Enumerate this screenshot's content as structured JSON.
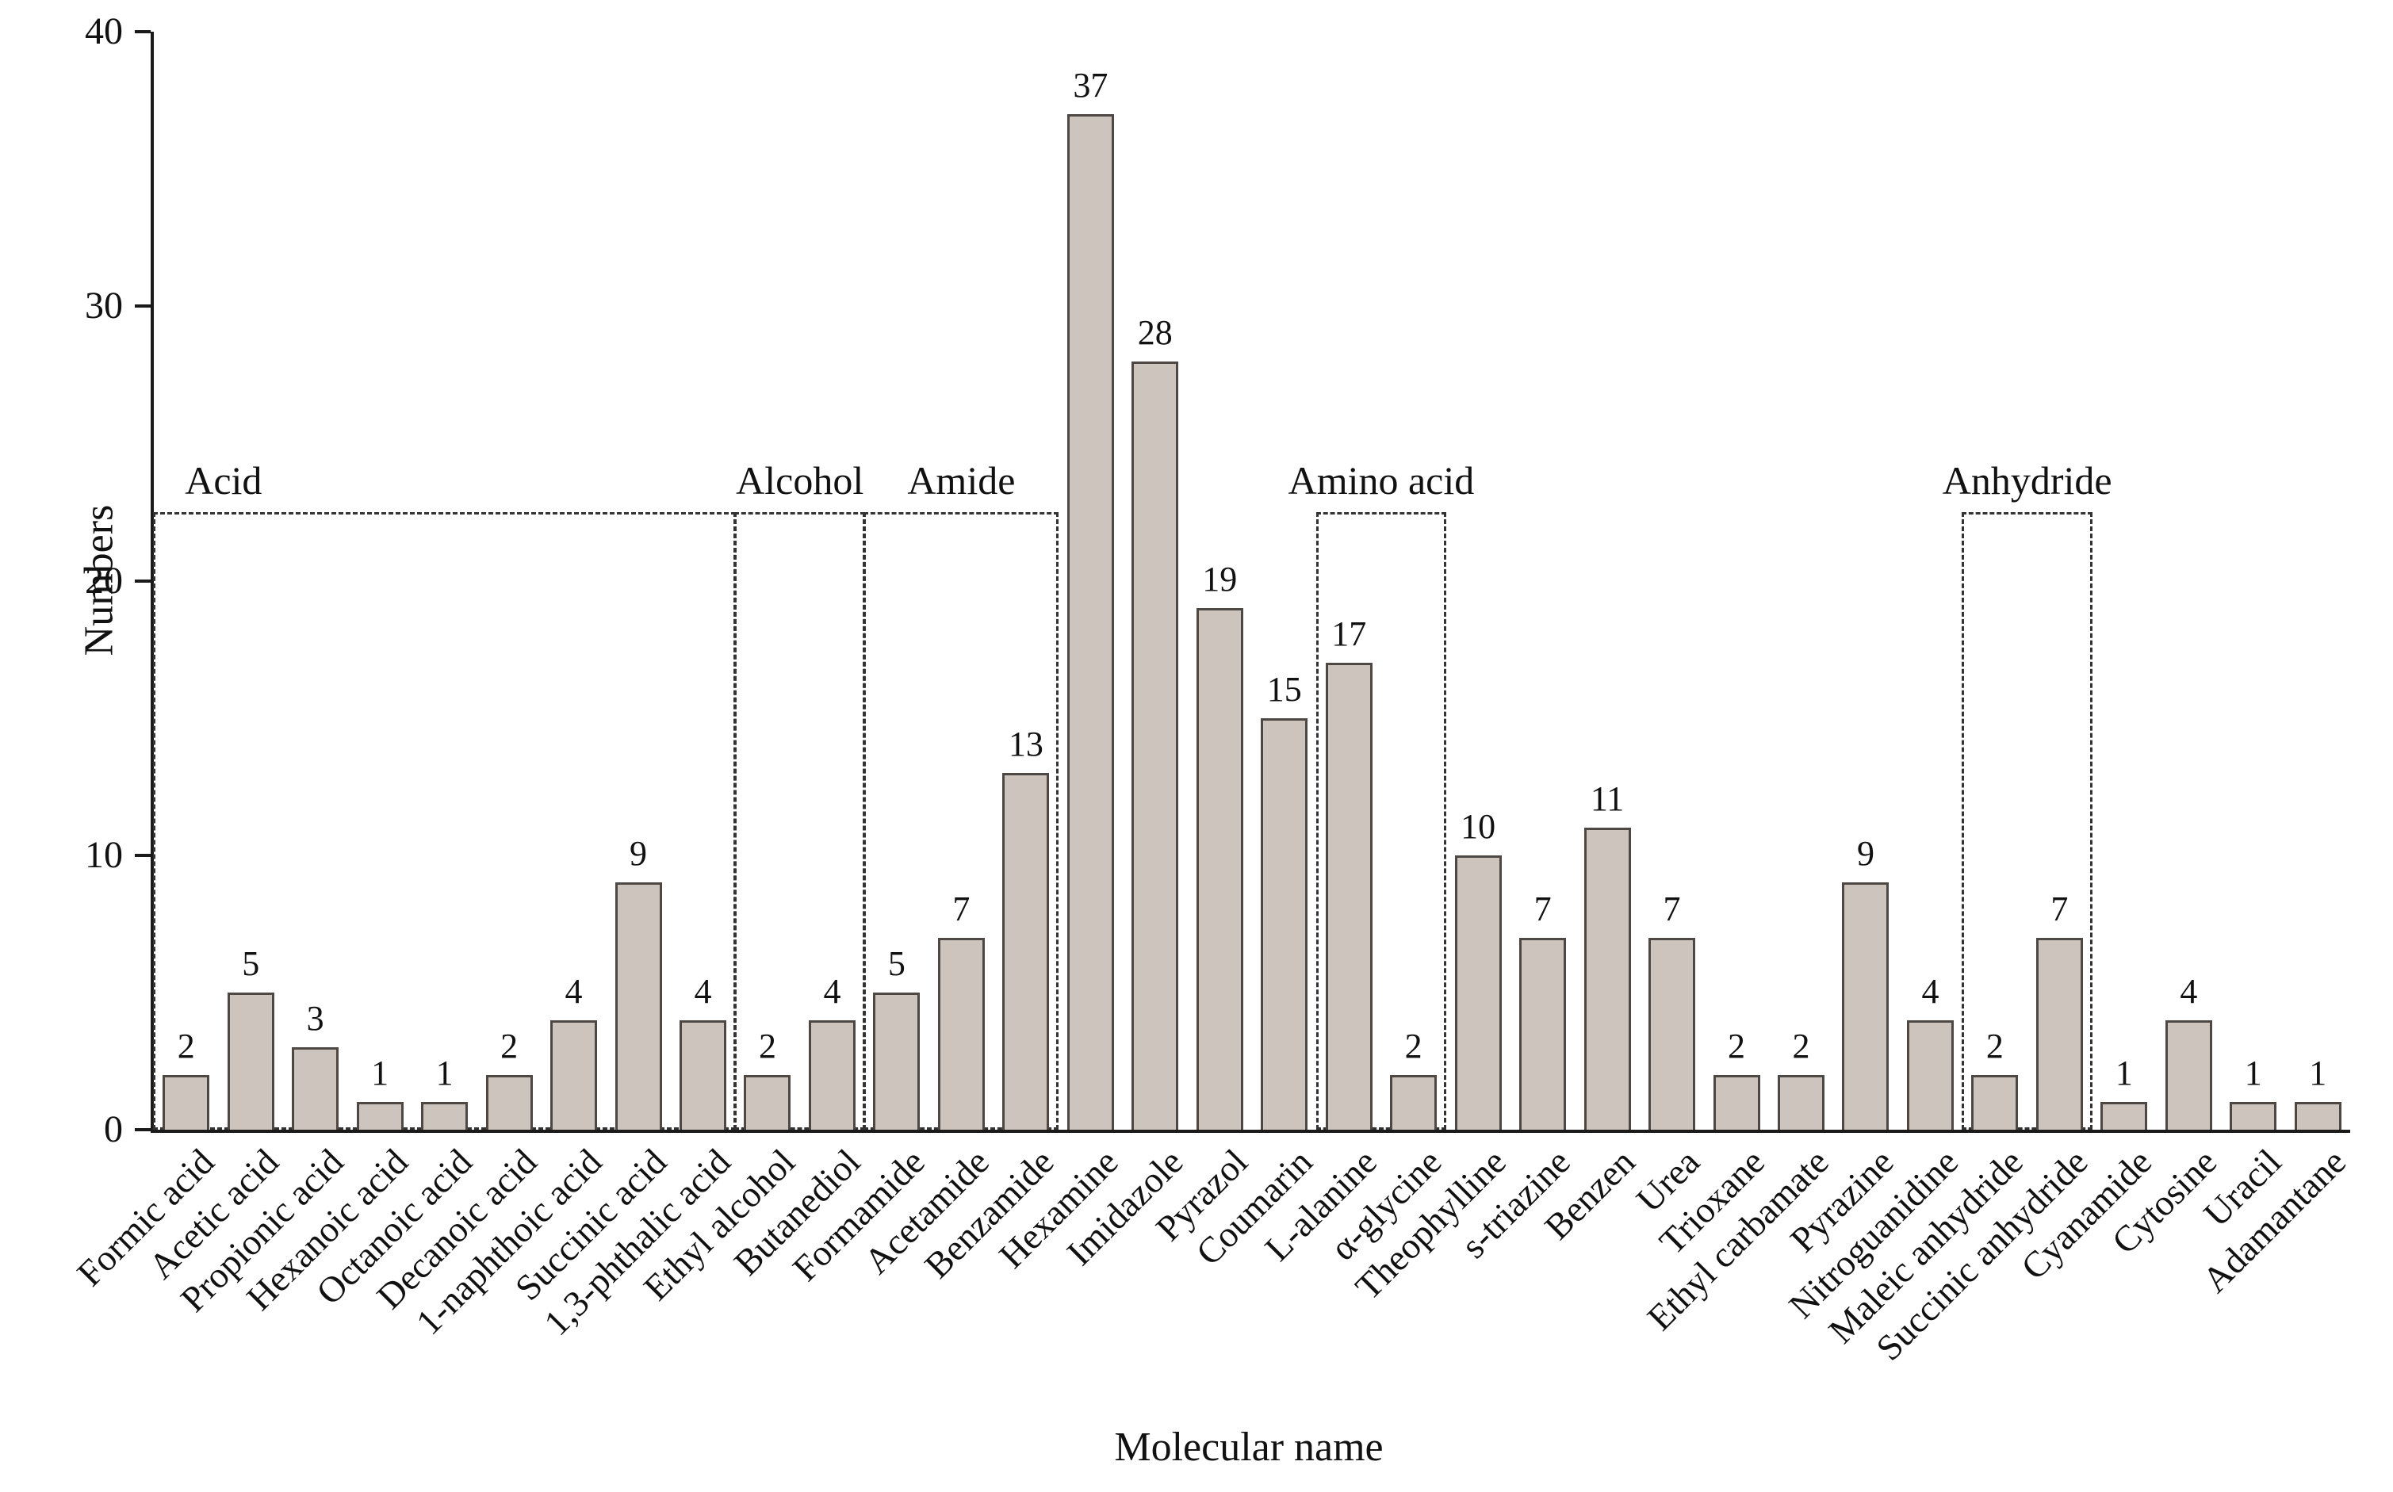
{
  "chart_data": {
    "type": "bar",
    "title": "",
    "xlabel": "Molecular name",
    "ylabel": "Numbers",
    "ylim": [
      0,
      40
    ],
    "yticks": [
      0,
      10,
      20,
      30,
      40
    ],
    "grid": false,
    "legend": "none",
    "bar_fill": "#cdc5bd",
    "bar_border": "#4d4843",
    "categories": [
      "Formic acid",
      "Acetic acid",
      "Propionic acid",
      "Hexanoic acid",
      "Octanoic acid",
      "Decanoic acid",
      "1-naphthoic acid",
      "Succinic acid",
      "1,3-phthalic acid",
      "Ethyl alcohol",
      "Butanediol",
      "Formamide",
      "Acetamide",
      "Benzamide",
      "Hexamine",
      "Imidazole",
      "Pyrazol",
      "Coumarin",
      "L-alanine",
      "α-glycine",
      "Theophylline",
      "s-triazine",
      "Benzen",
      "Urea",
      "Trioxane",
      "Ethyl carbamate",
      "Pyrazine",
      "Nitroguanidine",
      "Maleic anhydride",
      "Succinic anhydride",
      "Cyanamide",
      "Cytosine",
      "Uracil",
      "Adamantane"
    ],
    "values": [
      2,
      5,
      3,
      1,
      1,
      2,
      4,
      9,
      4,
      2,
      4,
      5,
      7,
      13,
      37,
      28,
      19,
      15,
      17,
      2,
      10,
      7,
      11,
      7,
      2,
      2,
      9,
      4,
      2,
      7,
      1,
      4,
      1,
      1
    ],
    "groups": [
      {
        "label": "Acid",
        "start": 0,
        "end": 8,
        "top": 22.5,
        "label_align": "left"
      },
      {
        "label": "Alcohol",
        "start": 9,
        "end": 10,
        "top": 22.5,
        "label_align": "center"
      },
      {
        "label": "Amide",
        "start": 11,
        "end": 13,
        "top": 22.5,
        "label_align": "center"
      },
      {
        "label": "Amino acid",
        "start": 18,
        "end": 19,
        "top": 22.5,
        "label_align": "center"
      },
      {
        "label": "Anhydride",
        "start": 28,
        "end": 29,
        "top": 22.5,
        "label_align": "center"
      }
    ]
  }
}
